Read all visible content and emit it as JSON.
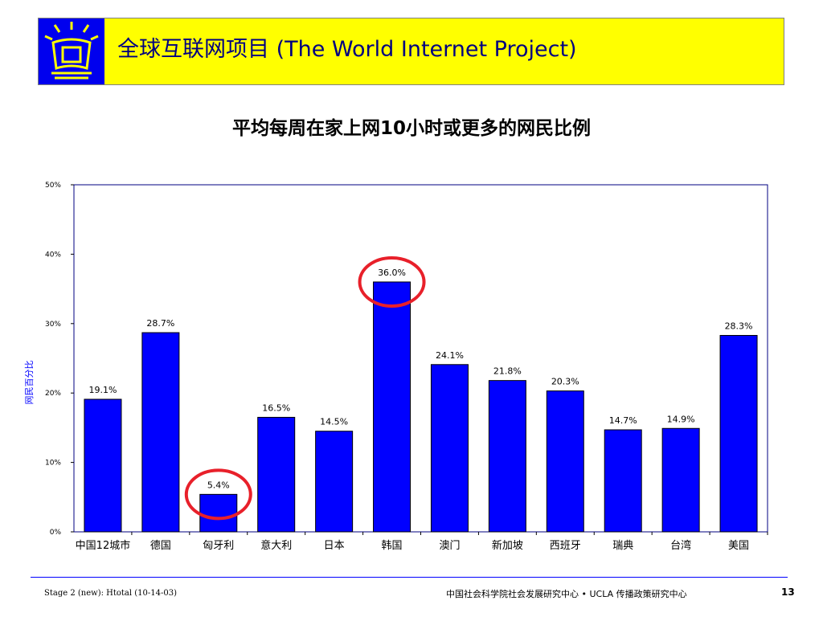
{
  "header": {
    "title": "全球互联网项目 (The World Internet Project)",
    "brand_color": "#ffff00",
    "logo_color": "#0000ee"
  },
  "chart_data": {
    "type": "bar",
    "title": "平均每周在家上网10小时或更多的网民比例",
    "ylabel": "网民百分比",
    "xlabel": "",
    "ylim": [
      0,
      50
    ],
    "yticks": [
      "0%",
      "10%",
      "20%",
      "30%",
      "40%",
      "50%"
    ],
    "grid": false,
    "bar_color": "#0000ff",
    "highlight_color": "#e8202a",
    "categories": [
      "中国12城市",
      "德国",
      "匈牙利",
      "意大利",
      "日本",
      "韩国",
      "澳门",
      "新加坡",
      "西班牙",
      "瑞典",
      "台湾",
      "美国"
    ],
    "values": [
      19.1,
      28.7,
      5.4,
      16.5,
      14.5,
      36.0,
      24.1,
      21.8,
      20.3,
      14.7,
      14.9,
      28.3
    ],
    "labels": [
      "19.1%",
      "28.7%",
      "5.4%",
      "16.5%",
      "14.5%",
      "36.0%",
      "24.1%",
      "21.8%",
      "20.3%",
      "14.7%",
      "14.9%",
      "28.3%"
    ],
    "highlighted": [
      "匈牙利",
      "韩国"
    ]
  },
  "footer": {
    "left": "Stage 2 (new): Htotal (10-14-03)",
    "center": "中国社会科学院社会发展研究中心 • UCLA 传播政策研究中心",
    "page_number": "13"
  }
}
